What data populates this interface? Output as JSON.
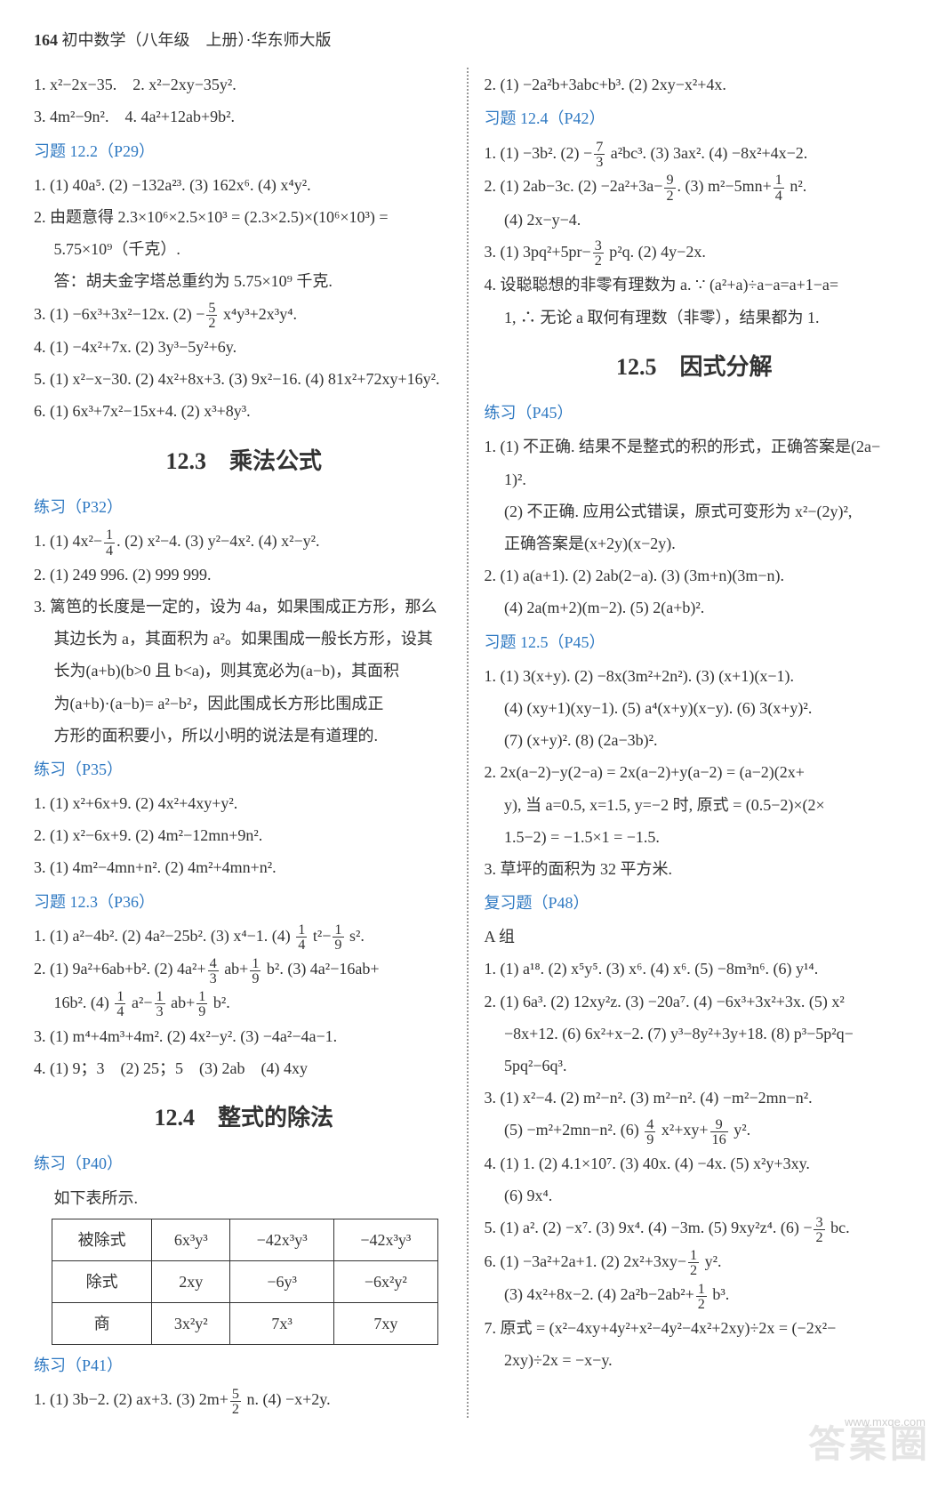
{
  "header": {
    "page_number": "164",
    "title": "初中数学（八年级　上册）·华东师大版"
  },
  "colors": {
    "text": "#333333",
    "link": "#2f79c2",
    "border": "#333333",
    "divider": "#999999",
    "background": "#ffffff",
    "watermark": "rgba(180,180,180,0.35)"
  },
  "left": {
    "block1": [
      "1. x²−2x−35.　2. x²−2xy−35y².",
      "3. 4m²−9n².　4. 4a²+12ab+9b²."
    ],
    "ex12_2_title": "习题 12.2（P29）",
    "ex12_2": [
      "1. (1) 40a⁵. (2) −132a²³. (3) 162x⁶. (4) x⁴y².",
      "2. 由题意得 2.3×10⁶×2.5×10³ = (2.3×2.5)×(10⁶×10³) =",
      "　 5.75×10⁹（千克）.",
      "　 答：胡夫金字塔总重约为 5.75×10⁹ 千克.",
      "3. (1) −6x³+3x²−12x. (2) −{5}/{2} x⁴y³+2x³y⁴.",
      "4. (1) −4x²+7x. (2) 3y³−5y²+6y.",
      "5. (1) x²−x−30. (2) 4x²+8x+3. (3) 9x²−16. (4) 81x²+72xy+16y².",
      "6. (1) 6x³+7x²−15x+4. (2) x³+8y³."
    ],
    "sec12_3_title": "12.3　乘法公式",
    "p32_title": "练习（P32）",
    "p32": [
      "1. (1) 4x²−{1}/{4}. (2) x²−4. (3) y²−4x². (4) x²−y².",
      "2. (1) 249 996. (2) 999 999.",
      "3. 篱笆的长度是一定的，设为 4a，如果围成正方形，那么",
      "　 其边长为 a，其面积为 a²。如果围成一般长方形，设其",
      "　 长为(a+b)(b>0 且 b<a)，则其宽必为(a−b)，其面积",
      "　 为(a+b)·(a−b)= a²−b²，因此围成长方形比围成正",
      "　 方形的面积要小，所以小明的说法是有道理的."
    ],
    "p35_title": "练习（P35）",
    "p35": [
      "1. (1) x²+6x+9. (2) 4x²+4xy+y².",
      "2. (1) x²−6x+9. (2) 4m²−12mn+9n².",
      "3. (1) 4m²−4mn+n². (2) 4m²+4mn+n²."
    ],
    "ex12_3_title": "习题 12.3（P36）",
    "ex12_3": [
      "1. (1) a²−4b². (2) 4a²−25b². (3) x⁴−1. (4) {1}/{4} t²−{1}/{9} s².",
      "2. (1) 9a²+6ab+b². (2) 4a²+{4}/{3} ab+{1}/{9} b². (3) 4a²−16ab+",
      "　 16b². (4) {1}/{4} a²−{1}/{3} ab+{1}/{9} b².",
      "3. (1) m⁴+4m³+4m². (2) 4x²−y². (3) −4a²−4a−1.",
      "4. (1) 9；3　(2) 25；5　(3) 2ab　(4) 4xy"
    ],
    "sec12_4_title": "12.4　整式的除法",
    "p40_title": "练习（P40）",
    "p40_intro": "　 如下表所示.",
    "table": {
      "headers_col": [
        "被除式",
        "除式",
        "商"
      ],
      "row1": [
        "6x³y³",
        "−42x³y³",
        "−42x³y³"
      ],
      "row2": [
        "2xy",
        "−6y³",
        "−6x²y²"
      ],
      "row3": [
        "3x²y²",
        "7x³",
        "7xy"
      ]
    },
    "p41_title": "练习（P41）",
    "p41": [
      "1. (1) 3b−2. (2) ax+3. (3) 2m+{5}/{2} n. (4) −x+2y."
    ]
  },
  "right": {
    "top": [
      "2. (1) −2a²b+3abc+b³. (2) 2xy−x²+4x."
    ],
    "ex12_4_title": "习题 12.4（P42）",
    "ex12_4": [
      "1. (1) −3b². (2) −{7}/{3} a²bc³. (3) 3ax². (4) −8x²+4x−2.",
      "2. (1) 2ab−3c. (2) −2a²+3a−{9}/{2}. (3) m²−5mn+{1}/{4} n².",
      "　 (4) 2x−y−4.",
      "3. (1) 3pq²+5pr−{3}/{2} p²q. (2) 4y−2x.",
      "4. 设聪聪想的非零有理数为 a. ∵ (a²+a)÷a−a=a+1−a=",
      "　 1, ∴ 无论 a 取何有理数（非零），结果都为 1."
    ],
    "sec12_5_title": "12.5　因式分解",
    "p45a_title": "练习（P45）",
    "p45a": [
      "1. (1) 不正确. 结果不是整式的积的形式，正确答案是(2a−",
      "　 1)².",
      "　 (2) 不正确. 应用公式错误，原式可变形为 x²−(2y)²,",
      "　 正确答案是(x+2y)(x−2y).",
      "2. (1) a(a+1). (2) 2ab(2−a). (3) (3m+n)(3m−n).",
      "　 (4) 2a(m+2)(m−2). (5) 2(a+b)²."
    ],
    "ex12_5_title": "习题 12.5（P45）",
    "ex12_5": [
      "1. (1) 3(x+y). (2) −8x(3m²+2n²). (3) (x+1)(x−1).",
      "　 (4) (xy+1)(xy−1). (5) a⁴(x+y)(x−y). (6) 3(x+y)².",
      "　 (7) (x+y)². (8) (2a−3b)².",
      "2. 2x(a−2)−y(2−a) = 2x(a−2)+y(a−2) = (a−2)(2x+",
      "　 y), 当 a=0.5, x=1.5, y=−2 时, 原式 = (0.5−2)×(2×",
      "　 1.5−2) = −1.5×1 = −1.5.",
      "3. 草坪的面积为 32 平方米."
    ],
    "review_title": "复习题（P48）",
    "review_a": "A 组",
    "review": [
      "1. (1) a¹⁸. (2) x⁵y⁵. (3) x⁶. (4) x⁶. (5) −8m³n⁶. (6) y¹⁴.",
      "2. (1) 6a³. (2) 12xy²z. (3) −20a⁷. (4) −6x³+3x²+3x. (5) x²",
      "　 −8x+12. (6) 6x²+x−2. (7) y³−8y²+3y+18. (8) p³−5p²q−",
      "　 5pq²−6q³.",
      "3. (1) x²−4. (2) m²−n². (3) m²−n². (4) −m²−2mn−n².",
      "　 (5) −m²+2mn−n². (6) {4}/{9} x²+xy+{9}/{16} y².",
      "4. (1) 1. (2) 4.1×10⁷. (3) 40x. (4) −4x. (5) x²y+3xy.",
      "　 (6) 9x⁴.",
      "5. (1) a². (2) −x⁷. (3) 9x⁴. (4) −3m. (5) 9xy²z⁴. (6) −{3}/{2} bc.",
      "6. (1) −3a²+2a+1. (2) 2x²+3xy−{1}/{2} y².",
      "　 (3) 4x²+8x−2. (4) 2a²b−2ab²+{1}/{2} b³.",
      "7. 原式 = (x²−4xy+4y²+x²−4y²−4x²+2xy)÷2x = (−2x²−",
      "　 2xy)÷2x = −x−y."
    ]
  },
  "watermark": "答案圈",
  "url": "www.mxqe.com"
}
